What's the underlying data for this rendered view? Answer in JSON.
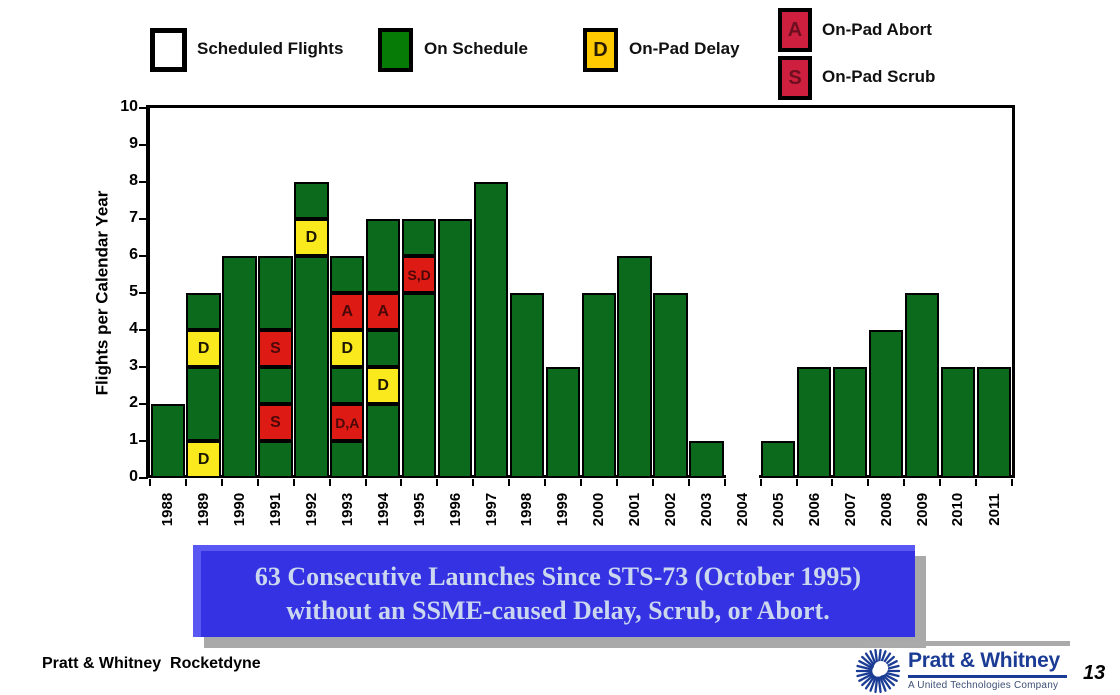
{
  "legend": {
    "items": [
      {
        "label": "Scheduled Flights",
        "letter": "",
        "swatch_color_key": "legend_white"
      },
      {
        "label": "On Schedule",
        "letter": "",
        "swatch_color_key": "legend_green"
      },
      {
        "label": "On-Pad Delay",
        "letter": "D",
        "swatch_color_key": "legend_gold"
      },
      {
        "label": "On-Pad Abort",
        "letter": "A",
        "swatch_color_key": "legend_red"
      },
      {
        "label": "On-Pad Scrub",
        "letter": "S",
        "swatch_color_key": "legend_red"
      }
    ]
  },
  "colors": {
    "legend_white": "#ffffff",
    "legend_green": "#067b06",
    "legend_gold": "#ffcb00",
    "legend_red": "#ce1f3e",
    "bar_green": "#0b6a1c",
    "bar_yellow": "#fae91c",
    "bar_red": "#de1a14",
    "banner_blue": "#3432e2",
    "banner_text": "#cbd6ef",
    "logo_blue": "#1b3c94"
  },
  "chart_data": {
    "type": "bar",
    "stacked": true,
    "title": "",
    "xlabel": "",
    "ylabel": "Flights per Calendar Year",
    "ylim": [
      0,
      10
    ],
    "yticks": [
      0,
      1,
      2,
      3,
      4,
      5,
      6,
      7,
      8,
      9,
      10
    ],
    "grid": false,
    "legend_position": "top",
    "categories": [
      "1988",
      "1989",
      "1990",
      "1991",
      "1992",
      "1993",
      "1994",
      "1995",
      "1996",
      "1997",
      "1998",
      "1999",
      "2000",
      "2001",
      "2002",
      "2003",
      "2004",
      "2005",
      "2006",
      "2007",
      "2008",
      "2009",
      "2010",
      "2011"
    ],
    "totals": [
      2,
      5,
      6,
      6,
      8,
      6,
      7,
      7,
      7,
      8,
      5,
      3,
      5,
      6,
      5,
      1,
      0,
      1,
      3,
      3,
      4,
      5,
      3,
      3
    ],
    "bars": [
      {
        "year": "1988",
        "total": 2,
        "segments": [
          {
            "v": 2,
            "c": "green"
          }
        ]
      },
      {
        "year": "1989",
        "total": 5,
        "segments": [
          {
            "v": 1,
            "c": "yellow",
            "label": "D"
          },
          {
            "v": 2,
            "c": "green"
          },
          {
            "v": 1,
            "c": "yellow",
            "label": "D"
          },
          {
            "v": 1,
            "c": "green"
          }
        ]
      },
      {
        "year": "1990",
        "total": 6,
        "segments": [
          {
            "v": 6,
            "c": "green"
          }
        ]
      },
      {
        "year": "1991",
        "total": 6,
        "segments": [
          {
            "v": 1,
            "c": "green"
          },
          {
            "v": 1,
            "c": "red",
            "label": "S"
          },
          {
            "v": 1,
            "c": "green"
          },
          {
            "v": 1,
            "c": "red",
            "label": "S"
          },
          {
            "v": 2,
            "c": "green"
          }
        ]
      },
      {
        "year": "1992",
        "total": 8,
        "segments": [
          {
            "v": 6,
            "c": "green"
          },
          {
            "v": 1,
            "c": "yellow",
            "label": "D"
          },
          {
            "v": 1,
            "c": "green"
          }
        ]
      },
      {
        "year": "1993",
        "total": 6,
        "segments": [
          {
            "v": 1,
            "c": "green"
          },
          {
            "v": 1,
            "c": "red",
            "label": "D,A"
          },
          {
            "v": 1,
            "c": "green"
          },
          {
            "v": 1,
            "c": "yellow",
            "label": "D"
          },
          {
            "v": 1,
            "c": "red",
            "label": "A"
          },
          {
            "v": 1,
            "c": "green"
          }
        ]
      },
      {
        "year": "1994",
        "total": 7,
        "segments": [
          {
            "v": 2,
            "c": "green"
          },
          {
            "v": 1,
            "c": "yellow",
            "label": "D"
          },
          {
            "v": 1,
            "c": "green"
          },
          {
            "v": 1,
            "c": "red",
            "label": "A"
          },
          {
            "v": 2,
            "c": "green"
          }
        ]
      },
      {
        "year": "1995",
        "total": 7,
        "segments": [
          {
            "v": 5,
            "c": "green"
          },
          {
            "v": 1,
            "c": "red",
            "label": "S,D"
          },
          {
            "v": 1,
            "c": "green"
          }
        ]
      },
      {
        "year": "1996",
        "total": 7,
        "segments": [
          {
            "v": 7,
            "c": "green"
          }
        ]
      },
      {
        "year": "1997",
        "total": 8,
        "segments": [
          {
            "v": 8,
            "c": "green"
          }
        ]
      },
      {
        "year": "1998",
        "total": 5,
        "segments": [
          {
            "v": 5,
            "c": "green"
          }
        ]
      },
      {
        "year": "1999",
        "total": 3,
        "segments": [
          {
            "v": 3,
            "c": "green"
          }
        ]
      },
      {
        "year": "2000",
        "total": 5,
        "segments": [
          {
            "v": 5,
            "c": "green"
          }
        ]
      },
      {
        "year": "2001",
        "total": 6,
        "segments": [
          {
            "v": 6,
            "c": "green"
          }
        ]
      },
      {
        "year": "2002",
        "total": 5,
        "segments": [
          {
            "v": 5,
            "c": "green"
          }
        ]
      },
      {
        "year": "2003",
        "total": 1,
        "segments": [
          {
            "v": 1,
            "c": "green"
          }
        ]
      },
      {
        "year": "2004",
        "total": 0,
        "segments": []
      },
      {
        "year": "2005",
        "total": 1,
        "segments": [
          {
            "v": 1,
            "c": "green"
          }
        ]
      },
      {
        "year": "2006",
        "total": 3,
        "segments": [
          {
            "v": 3,
            "c": "green"
          }
        ]
      },
      {
        "year": "2007",
        "total": 3,
        "segments": [
          {
            "v": 3,
            "c": "green"
          }
        ]
      },
      {
        "year": "2008",
        "total": 4,
        "segments": [
          {
            "v": 4,
            "c": "green"
          }
        ]
      },
      {
        "year": "2009",
        "total": 5,
        "segments": [
          {
            "v": 5,
            "c": "green"
          }
        ]
      },
      {
        "year": "2010",
        "total": 3,
        "segments": [
          {
            "v": 3,
            "c": "green"
          }
        ]
      },
      {
        "year": "2011",
        "total": 3,
        "segments": [
          {
            "v": 3,
            "c": "green"
          }
        ]
      }
    ]
  },
  "banner": {
    "line1": "63 Consecutive Launches Since STS-73 (October 1995)",
    "line2": "without an SSME-caused Delay, Scrub, or Abort."
  },
  "footer": {
    "left_text": "Pratt & Whitney  Rocketdyne",
    "logo_title": "Pratt & Whitney",
    "logo_subtitle": "A United Technologies Company",
    "page_number": "13"
  }
}
